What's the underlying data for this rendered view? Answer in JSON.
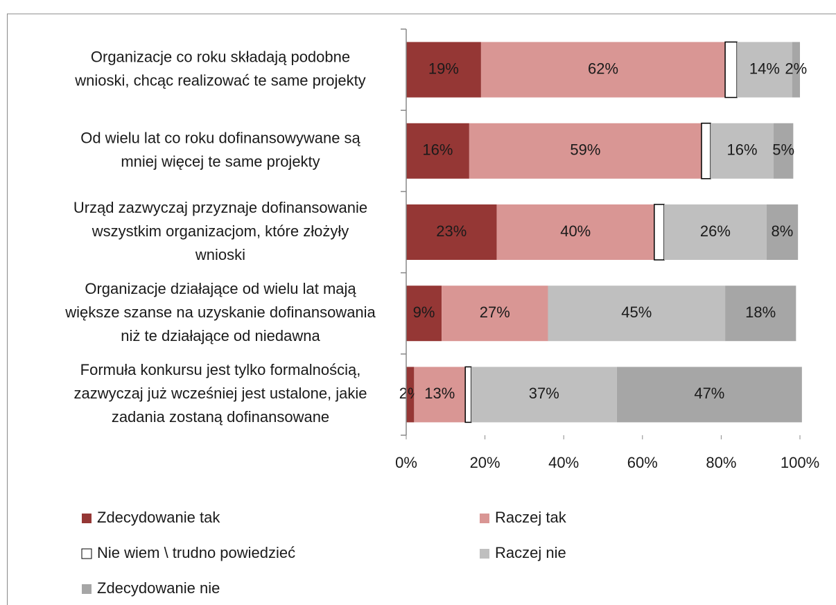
{
  "chart_data": {
    "type": "stacked_barh",
    "categories": [
      [
        "Organizacje co roku składają podobne",
        "wnioski, chcąc realizować te same projekty"
      ],
      [
        "Od wielu lat co roku dofinansowywane są",
        "mniej więcej te same projekty"
      ],
      [
        "Urząd zazwyczaj przyznaje dofinansowanie",
        "wszystkim organizacjom, które złożyły",
        "wnioski"
      ],
      [
        "Organizacje działające od wielu lat mają",
        "większe szanse na uzyskanie dofinansowania",
        "niż te działające od niedawna"
      ],
      [
        "Formuła konkursu jest tylko formalnością,",
        "zazwyczaj już wcześniej jest ustalone, jakie",
        "zadania zostaną dofinansowane"
      ]
    ],
    "series": [
      {
        "name": "Zdecydowanie tak",
        "color": "#953735",
        "values": [
          19,
          16,
          23,
          9,
          2
        ],
        "value_labels": [
          "19%",
          "16%",
          "23%",
          "9%",
          "2%"
        ]
      },
      {
        "name": "Raczej tak",
        "color": "#d99694",
        "values": [
          62,
          59,
          40,
          27,
          13
        ],
        "value_labels": [
          "62%",
          "59%",
          "40%",
          "27%",
          "13%"
        ]
      },
      {
        "name": "Nie wiem \\ trudno powiedzieć",
        "color": "#ffffff",
        "values": [
          3,
          2.3,
          2.5,
          0,
          1.5
        ],
        "value_labels": [
          null,
          null,
          null,
          null,
          null
        ]
      },
      {
        "name": "Raczej nie",
        "color": "#bfbfbf",
        "values": [
          14,
          16,
          26,
          45,
          37
        ],
        "value_labels": [
          "14%",
          "16%",
          "26%",
          "45%",
          "37%"
        ]
      },
      {
        "name": "Zdecydowanie nie",
        "color": "#a6a6a6",
        "values": [
          2,
          5,
          8,
          18,
          47
        ],
        "value_labels": [
          "2%",
          "5%",
          "8%",
          "18%",
          "47%"
        ]
      }
    ],
    "xlim": [
      0,
      100
    ],
    "xticks": [
      {
        "value": 0,
        "label": "0%"
      },
      {
        "value": 20,
        "label": "20%"
      },
      {
        "value": 40,
        "label": "40%"
      },
      {
        "value": 60,
        "label": "60%"
      },
      {
        "value": 80,
        "label": "80%"
      },
      {
        "value": 100,
        "label": "100%"
      }
    ]
  }
}
